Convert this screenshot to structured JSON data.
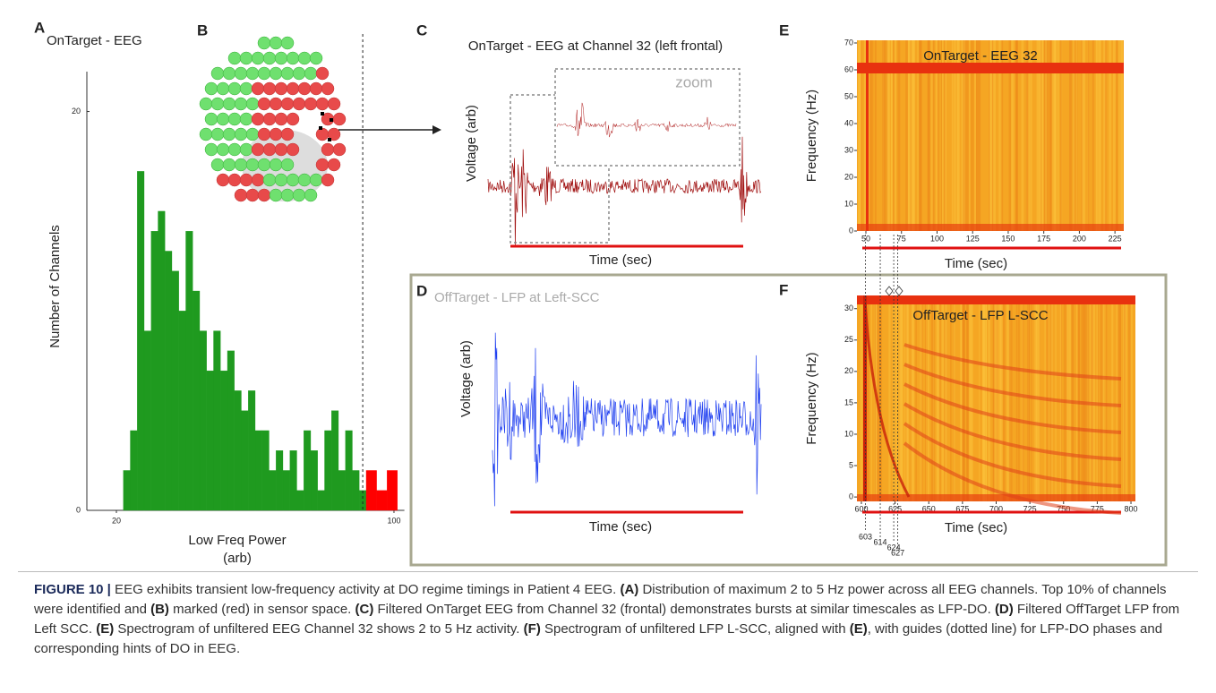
{
  "panel_a": {
    "label": "A",
    "title": "OnTarget - EEG",
    "chart": {
      "type": "histogram",
      "ylabel": "Number of Channels",
      "xlabel": "Low Freq Power",
      "xlabel_unit": "(arb)",
      "xlim": [
        18,
        103
      ],
      "ylim": [
        0,
        22
      ],
      "xticks": [
        20,
        100
      ],
      "yticks": [
        0,
        20
      ],
      "threshold": 91,
      "series": [
        {
          "color": "#1f9a1f",
          "bins": [
            22,
            24,
            26,
            28,
            30,
            32,
            34,
            36,
            38,
            40,
            42,
            44,
            46,
            48,
            50,
            52,
            54,
            56,
            58,
            60,
            62,
            64,
            66,
            68,
            70,
            72,
            74,
            76,
            78,
            80,
            82,
            84,
            86,
            88,
            90,
            92
          ],
          "counts": [
            2,
            4,
            17,
            9,
            14,
            15,
            13,
            12,
            10,
            14,
            11,
            9,
            7,
            9,
            7,
            8,
            6,
            5,
            6,
            4,
            4,
            2,
            3,
            2,
            3,
            1,
            4,
            3,
            1,
            4,
            5,
            2,
            4,
            2,
            1
          ]
        },
        {
          "color": "#ff0000",
          "bins": [
            92,
            95,
            98,
            101
          ],
          "counts": [
            2,
            1,
            2
          ]
        }
      ]
    }
  },
  "panel_b": {
    "label": "B"
  },
  "panel_c": {
    "label": "C",
    "title": "OnTarget - EEG at Channel 32 (left frontal)",
    "zoom_label": "zoom",
    "ylabel": "Voltage (arb)",
    "xlabel": "Time (sec)"
  },
  "panel_d": {
    "label": "D",
    "title": "OffTarget - LFP at Left-SCC",
    "ylabel": "Voltage (arb)",
    "xlabel": "Time (sec)"
  },
  "panel_e": {
    "label": "E",
    "chart": {
      "type": "spectrogram",
      "title": "OnTarget - EEG 32",
      "ylabel": "Frequency (Hz)",
      "xlabel": "Time (sec)",
      "xlim": [
        43.7,
        231.2
      ],
      "ylim": [
        0,
        71
      ],
      "xticks": [
        50,
        75,
        100,
        125,
        150,
        175,
        200,
        225
      ],
      "yticks": [
        0,
        10,
        20,
        30,
        40,
        50,
        60,
        70
      ]
    }
  },
  "panel_f": {
    "label": "F",
    "chart": {
      "type": "spectrogram",
      "title": "OffTarget - LFP L-SCC",
      "ylabel": "Frequency (Hz)",
      "xlabel": "Time (sec)",
      "xlim": [
        596.7,
        803.3
      ],
      "ylim": [
        -0.7,
        32.1
      ],
      "xticks": [
        600,
        625,
        650,
        675,
        700,
        725,
        750,
        775,
        800
      ],
      "yticks": [
        0,
        5,
        10,
        15,
        20,
        25,
        30
      ],
      "guides": [
        603,
        614,
        624,
        627
      ]
    }
  },
  "caption": {
    "segments": [
      {
        "text": "FIGURE 10 |",
        "bold": true
      },
      {
        "text": " EEG exhibits transient low-frequency activity at DO regime timings in Patient 4 EEG. ",
        "bold": false
      },
      {
        "text": "(A)",
        "bold": true
      },
      {
        "text": " Distribution of maximum 2 to 5 Hz power across all EEG channels. Top 10% of channels were identified and ",
        "bold": false
      },
      {
        "text": "(B)",
        "bold": true
      },
      {
        "text": " marked (red) in sensor space. ",
        "bold": false
      },
      {
        "text": "(C)",
        "bold": true
      },
      {
        "text": " Filtered OnTarget EEG from Channel 32 (frontal) demonstrates bursts at similar timescales as LFP-DO. ",
        "bold": false
      },
      {
        "text": "(D)",
        "bold": true
      },
      {
        "text": " Filtered OffTarget LFP from Left SCC. ",
        "bold": false
      },
      {
        "text": "(E)",
        "bold": true
      },
      {
        "text": " Spectrogram of unfiltered EEG Channel 32 shows 2 to 5 Hz activity. ",
        "bold": false
      },
      {
        "text": "(F)",
        "bold": true
      },
      {
        "text": " Spectrogram of unfiltered LFP L-SCC, aligned with ",
        "bold": false
      },
      {
        "text": "(E)",
        "bold": true
      },
      {
        "text": ", with guides (dotted line) for LFP-DO phases and corresponding hints of DO in EEG.",
        "bold": false
      }
    ]
  }
}
